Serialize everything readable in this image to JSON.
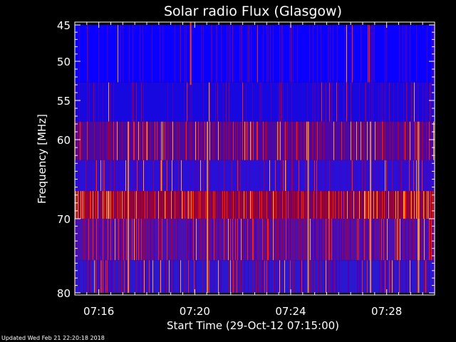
{
  "chart_data": {
    "type": "heatmap",
    "title": "Solar radio Flux (Glasgow)",
    "xlabel": "Start Time (29-Oct-12 07:15:00)",
    "ylabel": "Frequency [MHz]",
    "x_range_minutes": [
      0.0,
      15.0
    ],
    "ylim": [
      45,
      80
    ],
    "y_axis_inverted": true,
    "x_tick_labels": [
      {
        "label": "07:16",
        "minute": 1.0
      },
      {
        "label": "07:20",
        "minute": 5.0
      },
      {
        "label": "07:24",
        "minute": 9.0
      },
      {
        "label": "07:28",
        "minute": 13.0
      }
    ],
    "y_ticks": [
      45,
      50,
      55,
      60,
      70,
      80
    ],
    "frequency_bands_mhz": [
      {
        "from": 45.0,
        "to": 52.7,
        "color": "#0a00ff",
        "note": "low intensity"
      },
      {
        "from": 52.7,
        "to": 57.7,
        "color": "#1808e0",
        "note": "low intensity"
      },
      {
        "from": 57.7,
        "to": 62.6,
        "color": "#4a0aa0",
        "note": "mixed, many red spikes"
      },
      {
        "from": 62.6,
        "to": 66.5,
        "color": "#2810d8",
        "note": "low intensity"
      },
      {
        "from": 66.5,
        "to": 70.0,
        "color": "#88003c",
        "note": "high intensity band"
      },
      {
        "from": 70.0,
        "to": 75.6,
        "color": "#4a10b0",
        "note": "mixed, many spikes"
      },
      {
        "from": 75.6,
        "to": 80.0,
        "color": "#2a18d0",
        "note": "low intensity"
      }
    ],
    "colormap": [
      "#0000ff",
      "#5000b0",
      "#a00040",
      "#ff2000",
      "#ff9a30"
    ],
    "notable_bursts_minutes": [
      2.2,
      5.5,
      9.7,
      12.3,
      14.3
    ]
  },
  "footer": {
    "updated": "Updated Wed Feb 21 22:20:18 2018"
  }
}
